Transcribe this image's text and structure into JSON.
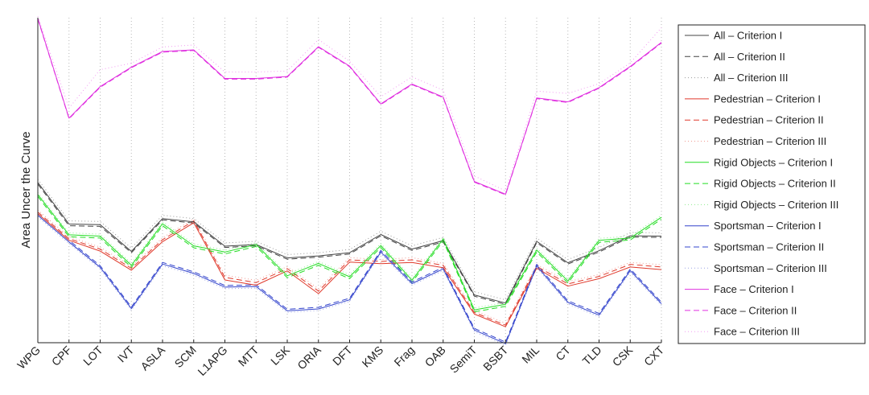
{
  "chart_data": {
    "type": "line",
    "ylabel": "Area Uncer the Curve",
    "xlabel": "",
    "categories": [
      "WPG",
      "CPF",
      "LOT",
      "IVT",
      "ASLA",
      "SCM",
      "L1APG",
      "MTT",
      "LSK",
      "ORIA",
      "DFT",
      "KMS",
      "Frag",
      "OAB",
      "SemiT",
      "BSBT",
      "MIL",
      "CT",
      "TLD",
      "CSK",
      "CXT"
    ],
    "ylim": [
      0,
      1
    ],
    "yticks_visible": false,
    "grid": "vertical dotted",
    "legend_position": "outside-right",
    "series": [
      {
        "name": "All – Criterion I",
        "color": "#444444",
        "dash": "solid",
        "values": [
          0.493,
          0.365,
          0.363,
          0.281,
          0.382,
          0.372,
          0.297,
          0.302,
          0.261,
          0.267,
          0.277,
          0.333,
          0.288,
          0.314,
          0.147,
          0.122,
          0.312,
          0.246,
          0.283,
          0.329,
          0.328
        ]
      },
      {
        "name": "All – Criterion II",
        "color": "#444444",
        "dash": "dashed",
        "values": [
          0.488,
          0.36,
          0.358,
          0.277,
          0.378,
          0.368,
          0.293,
          0.298,
          0.257,
          0.263,
          0.273,
          0.329,
          0.284,
          0.31,
          0.143,
          0.118,
          0.308,
          0.242,
          0.279,
          0.325,
          0.324
        ]
      },
      {
        "name": "All – Criterion III",
        "color": "#9a9a9a",
        "dash": "dotted",
        "values": [
          0.503,
          0.375,
          0.373,
          0.291,
          0.392,
          0.382,
          0.307,
          0.312,
          0.271,
          0.277,
          0.287,
          0.343,
          0.298,
          0.324,
          0.157,
          0.132,
          0.322,
          0.256,
          0.293,
          0.339,
          0.338
        ]
      },
      {
        "name": "Pedestrian – Criterion I",
        "color": "#e0392b",
        "dash": "solid",
        "values": [
          0.397,
          0.315,
          0.282,
          0.223,
          0.311,
          0.369,
          0.193,
          0.177,
          0.221,
          0.151,
          0.248,
          0.243,
          0.247,
          0.231,
          0.088,
          0.049,
          0.229,
          0.174,
          0.197,
          0.233,
          0.225
        ]
      },
      {
        "name": "Pedestrian – Criterion II",
        "color": "#e0392b",
        "dash": "dashed",
        "values": [
          0.402,
          0.32,
          0.288,
          0.229,
          0.317,
          0.375,
          0.201,
          0.185,
          0.228,
          0.159,
          0.255,
          0.25,
          0.255,
          0.238,
          0.093,
          0.054,
          0.235,
          0.181,
          0.204,
          0.241,
          0.233
        ]
      },
      {
        "name": "Pedestrian – Criterion III",
        "color": "#f09a92",
        "dash": "dotted",
        "values": [
          0.408,
          0.326,
          0.294,
          0.235,
          0.323,
          0.381,
          0.208,
          0.192,
          0.234,
          0.166,
          0.262,
          0.256,
          0.262,
          0.244,
          0.099,
          0.06,
          0.241,
          0.188,
          0.21,
          0.247,
          0.24
        ]
      },
      {
        "name": "Rigid Objects – Criterion I",
        "color": "#22dd22",
        "dash": "solid",
        "values": [
          0.456,
          0.332,
          0.328,
          0.238,
          0.366,
          0.298,
          0.279,
          0.302,
          0.206,
          0.244,
          0.203,
          0.299,
          0.192,
          0.319,
          0.101,
          0.118,
          0.285,
          0.19,
          0.315,
          0.322,
          0.386
        ]
      },
      {
        "name": "Rigid Objects – Criterion II",
        "color": "#22dd22",
        "dash": "dashed",
        "values": [
          0.45,
          0.326,
          0.322,
          0.232,
          0.36,
          0.292,
          0.273,
          0.296,
          0.2,
          0.238,
          0.197,
          0.293,
          0.186,
          0.313,
          0.095,
          0.112,
          0.279,
          0.184,
          0.309,
          0.316,
          0.38
        ]
      },
      {
        "name": "Rigid Objects – Criterion III",
        "color": "#8fec8f",
        "dash": "dotted",
        "values": [
          0.462,
          0.338,
          0.334,
          0.244,
          0.372,
          0.304,
          0.285,
          0.308,
          0.212,
          0.25,
          0.209,
          0.305,
          0.198,
          0.325,
          0.107,
          0.124,
          0.291,
          0.196,
          0.321,
          0.328,
          0.392
        ]
      },
      {
        "name": "Sportsman – Criterion I",
        "color": "#3344cc",
        "dash": "solid",
        "values": [
          0.392,
          0.31,
          0.232,
          0.105,
          0.242,
          0.213,
          0.171,
          0.173,
          0.098,
          0.104,
          0.132,
          0.279,
          0.182,
          0.227,
          0.039,
          -0.003,
          0.236,
          0.124,
          0.085,
          0.222,
          0.12
        ]
      },
      {
        "name": "Sportsman – Criterion II",
        "color": "#3344cc",
        "dash": "dashed",
        "values": [
          0.397,
          0.315,
          0.237,
          0.11,
          0.247,
          0.218,
          0.176,
          0.178,
          0.103,
          0.109,
          0.137,
          0.284,
          0.187,
          0.232,
          0.044,
          0.002,
          0.241,
          0.129,
          0.09,
          0.227,
          0.125
        ]
      },
      {
        "name": "Sportsman – Criterion III",
        "color": "#9aa2e3",
        "dash": "dotted",
        "values": [
          0.387,
          0.305,
          0.227,
          0.1,
          0.237,
          0.208,
          0.166,
          0.168,
          0.093,
          0.099,
          0.127,
          0.274,
          0.177,
          0.222,
          0.034,
          -0.008,
          0.231,
          0.119,
          0.08,
          0.217,
          0.115
        ]
      },
      {
        "name": "Face – Criterion I",
        "color": "#e031e0",
        "dash": "solid",
        "values": [
          0.998,
          0.691,
          0.788,
          0.848,
          0.896,
          0.901,
          0.813,
          0.813,
          0.819,
          0.911,
          0.851,
          0.735,
          0.796,
          0.756,
          0.496,
          0.457,
          0.753,
          0.741,
          0.785,
          0.85,
          0.924
        ]
      },
      {
        "name": "Face – Criterion II",
        "color": "#e031e0",
        "dash": "dashed",
        "values": [
          0.996,
          0.689,
          0.786,
          0.846,
          0.894,
          0.899,
          0.811,
          0.811,
          0.817,
          0.909,
          0.849,
          0.733,
          0.794,
          0.754,
          0.494,
          0.455,
          0.751,
          0.739,
          0.783,
          0.848,
          0.922
        ]
      },
      {
        "name": "Face – Criterion III",
        "color": "#f29af2",
        "dash": "dotted",
        "values": [
          1.004,
          0.722,
          0.84,
          0.86,
          0.91,
          0.916,
          0.833,
          0.833,
          0.836,
          0.933,
          0.866,
          0.757,
          0.818,
          0.777,
          0.513,
          0.467,
          0.774,
          0.767,
          0.797,
          0.861,
          0.969
        ]
      }
    ]
  }
}
